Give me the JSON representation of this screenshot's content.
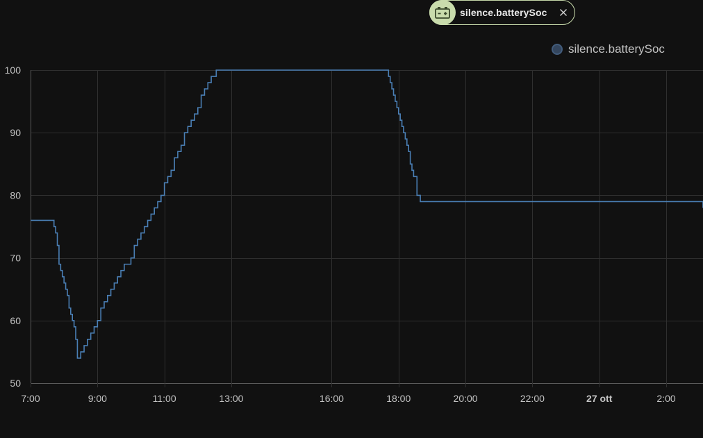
{
  "chip": {
    "label": "silence.batterySoc",
    "icon": "battery-charging-icon",
    "close_icon": "close-icon",
    "accent_color": "#c9dcac"
  },
  "legend": {
    "label": "silence.batterySoc"
  },
  "colors": {
    "background": "#111111",
    "grid": "#2f2f2f",
    "line": "#4a7fb5",
    "text": "#c4c4c4"
  },
  "chart_data": {
    "type": "line",
    "step": true,
    "grid": true,
    "legend_position": "top-right",
    "ylim": [
      50,
      100
    ],
    "yticks": [
      50,
      60,
      70,
      80,
      90,
      100
    ],
    "xlim_hours": [
      7,
      27.1
    ],
    "xticks": [
      {
        "label": "7:00",
        "hour": 7,
        "bold": false
      },
      {
        "label": "9:00",
        "hour": 9,
        "bold": false
      },
      {
        "label": "11:00",
        "hour": 11,
        "bold": false
      },
      {
        "label": "13:00",
        "hour": 13,
        "bold": false
      },
      {
        "label": "16:00",
        "hour": 16,
        "bold": false
      },
      {
        "label": "18:00",
        "hour": 18,
        "bold": false
      },
      {
        "label": "20:00",
        "hour": 20,
        "bold": false
      },
      {
        "label": "22:00",
        "hour": 22,
        "bold": false
      },
      {
        "label": "27 ott",
        "hour": 24,
        "bold": true
      },
      {
        "label": "2:00",
        "hour": 26,
        "bold": false
      }
    ],
    "series": [
      {
        "name": "silence.batterySoc",
        "x": [
          7.0,
          7.7,
          7.75,
          7.8,
          7.85,
          7.9,
          7.95,
          8.0,
          8.05,
          8.1,
          8.15,
          8.2,
          8.25,
          8.3,
          8.35,
          8.4,
          8.5,
          8.6,
          8.7,
          8.8,
          8.9,
          9.0,
          9.1,
          9.2,
          9.3,
          9.4,
          9.5,
          9.6,
          9.7,
          9.8,
          10.0,
          10.1,
          10.2,
          10.3,
          10.4,
          10.5,
          10.6,
          10.7,
          10.8,
          10.9,
          11.0,
          11.1,
          11.2,
          11.3,
          11.4,
          11.5,
          11.6,
          11.7,
          11.8,
          11.9,
          12.0,
          12.1,
          12.2,
          12.3,
          12.4,
          12.55,
          17.7,
          17.75,
          17.8,
          17.85,
          17.9,
          17.95,
          18.0,
          18.05,
          18.1,
          18.15,
          18.2,
          18.25,
          18.3,
          18.35,
          18.4,
          18.45,
          18.55,
          18.65,
          27.1
        ],
        "values": [
          76,
          75,
          74,
          72,
          69,
          68,
          67,
          66,
          65,
          64,
          62,
          61,
          60,
          59,
          57,
          54,
          55,
          56,
          57,
          58,
          59,
          60,
          62,
          63,
          64,
          65,
          66,
          67,
          68,
          69,
          70,
          72,
          73,
          74,
          75,
          76,
          77,
          78,
          79,
          80,
          82,
          83,
          84,
          86,
          87,
          88,
          90,
          91,
          92,
          93,
          94,
          96,
          97,
          98,
          99,
          100,
          99,
          98,
          97,
          96,
          95,
          94,
          93,
          92,
          91,
          90,
          89,
          88,
          87,
          85,
          84,
          83,
          80,
          79,
          78
        ]
      }
    ]
  }
}
